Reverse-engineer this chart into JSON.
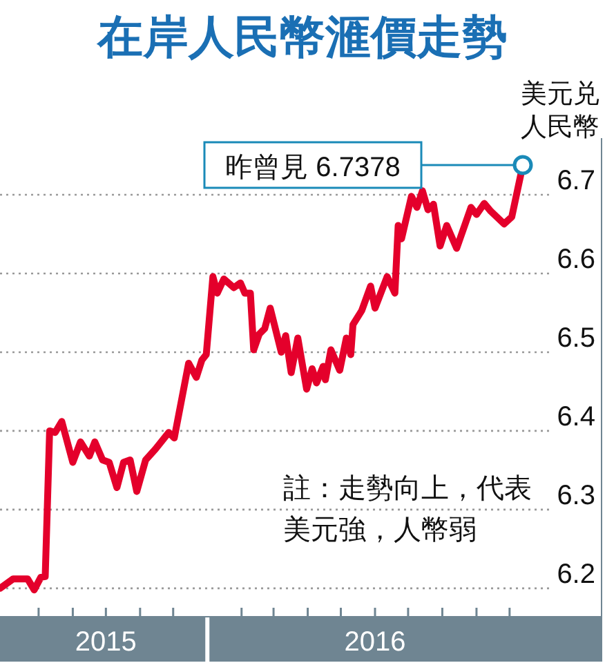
{
  "chart_data": {
    "type": "line",
    "title": "在岸人民幣滙價走勢",
    "ylabel": "美元兑人民幣",
    "x": [
      "2015-06-27",
      "2015-07-09",
      "2015-07-22",
      "2015-07-28",
      "2015-08-03",
      "2015-08-07",
      "2015-08-11",
      "2015-08-16",
      "2015-08-22",
      "2015-09-01",
      "2015-09-08",
      "2015-09-16",
      "2015-09-21",
      "2015-09-28",
      "2015-10-04",
      "2015-10-11",
      "2015-10-17",
      "2015-10-23",
      "2015-10-29",
      "2015-11-06",
      "2015-11-15",
      "2015-11-27",
      "2015-12-02",
      "2015-12-15",
      "2015-12-22",
      "2015-12-27",
      "2015-12-31",
      "2016-01-06",
      "2016-01-10",
      "2016-01-16",
      "2016-01-25",
      "2016-01-31",
      "2016-02-04",
      "2016-02-09",
      "2016-02-12",
      "2016-02-17",
      "2016-02-22",
      "2016-02-27",
      "2016-03-08",
      "2016-03-12",
      "2016-03-17",
      "2016-03-23",
      "2016-03-31",
      "2016-04-05",
      "2016-04-09",
      "2016-04-15",
      "2016-04-17",
      "2016-04-22",
      "2016-04-30",
      "2016-05-06",
      "2016-05-10",
      "2016-05-12",
      "2016-05-20",
      "2016-05-28",
      "2016-06-01",
      "2016-06-12",
      "2016-06-19",
      "2016-06-22",
      "2016-06-25",
      "2016-07-04",
      "2016-07-09",
      "2016-07-14",
      "2016-07-19",
      "2016-07-24",
      "2016-07-30",
      "2016-08-05",
      "2016-08-14",
      "2016-08-27",
      "2016-09-01",
      "2016-09-08",
      "2016-09-14",
      "2016-09-26",
      "2016-10-03",
      "2016-10-13"
    ],
    "series": [
      {
        "color": "#e4002b",
        "values": [
          6.2,
          6.212,
          6.212,
          6.198,
          6.214,
          6.215,
          6.4,
          6.398,
          6.412,
          6.36,
          6.386,
          6.368,
          6.386,
          6.363,
          6.36,
          6.328,
          6.36,
          6.363,
          6.323,
          6.363,
          6.377,
          6.398,
          6.391,
          6.486,
          6.468,
          6.49,
          6.497,
          6.596,
          6.575,
          6.593,
          6.582,
          6.588,
          6.575,
          6.575,
          6.503,
          6.523,
          6.53,
          6.556,
          6.5,
          6.521,
          6.474,
          6.518,
          6.453,
          6.479,
          6.461,
          6.482,
          6.465,
          6.503,
          6.477,
          6.518,
          6.497,
          6.535,
          6.553,
          6.584,
          6.556,
          6.596,
          6.575,
          6.661,
          6.644,
          6.698,
          6.684,
          6.705,
          6.681,
          6.688,
          6.635,
          6.661,
          6.632,
          6.684,
          6.675,
          6.689,
          6.679,
          6.663,
          6.672,
          6.7378
        ]
      }
    ],
    "ylim": [
      6.163,
      6.772
    ],
    "yticks": [
      6.2,
      6.3,
      6.4,
      6.5,
      6.6,
      6.7
    ],
    "xlim": [
      "2015-06-27",
      "2016-12-24"
    ],
    "xticks": [
      {
        "value": "2015-08-01",
        "label": null
      },
      {
        "value": "2015-09-01",
        "label": null
      },
      {
        "value": "2015-10-01",
        "label": "2015"
      },
      {
        "value": "2015-11-01",
        "label": null
      },
      {
        "value": "2015-12-01",
        "label": null
      },
      {
        "value": "2016-02-01",
        "label": null
      },
      {
        "value": "2016-03-01",
        "label": null
      },
      {
        "value": "2016-04-01",
        "label": null
      },
      {
        "value": "2016-05-01",
        "label": null
      },
      {
        "value": "2016-06-01",
        "label": "2016"
      },
      {
        "value": "2016-07-01",
        "label": null
      },
      {
        "value": "2016-08-01",
        "label": null
      },
      {
        "value": "2016-09-01",
        "label": null
      },
      {
        "value": "2016-10-01",
        "label": null
      }
    ],
    "grid": "y",
    "marker": "none",
    "line_style": "solid",
    "annotations": [
      {
        "text": "昨曾見 6.7378",
        "x": "2016-10-13",
        "y": 6.7378
      },
      "註：走勢向上，代表美元強，人幣弱"
    ]
  }
}
